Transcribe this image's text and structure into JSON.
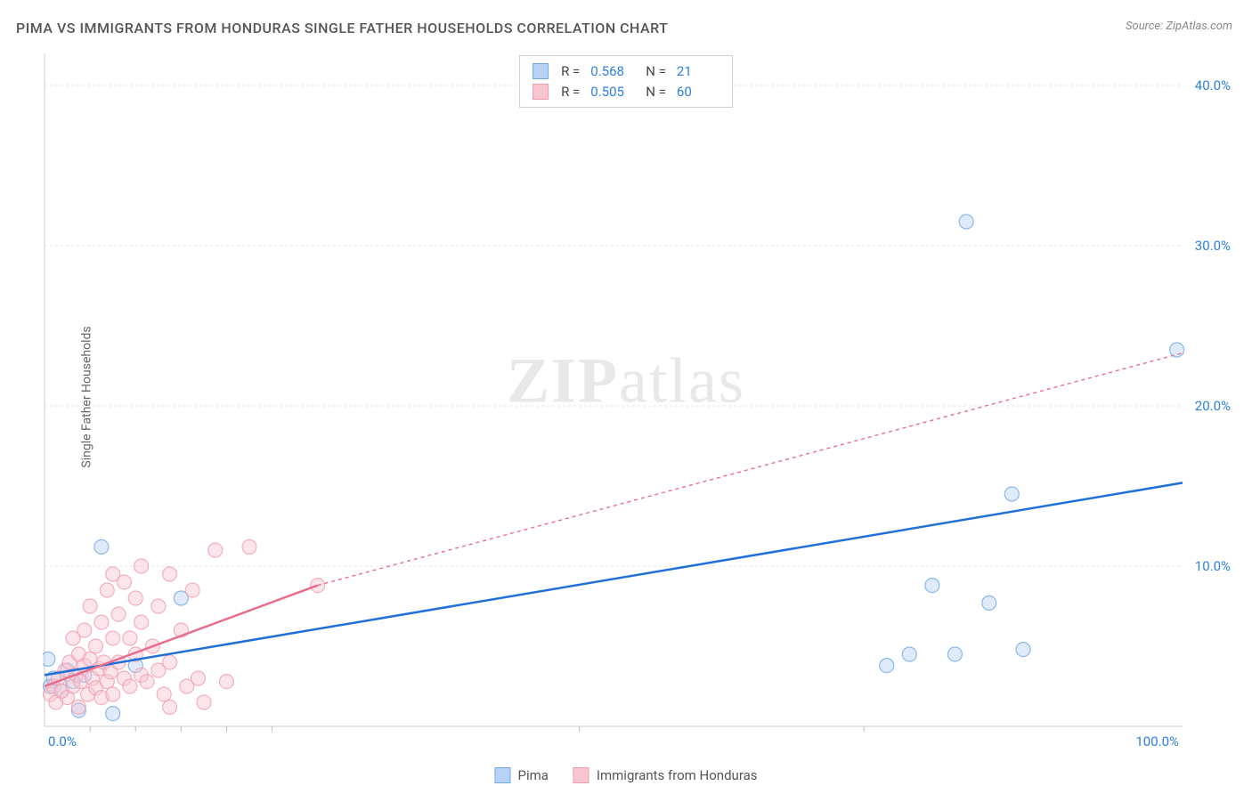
{
  "title": "PIMA VS IMMIGRANTS FROM HONDURAS SINGLE FATHER HOUSEHOLDS CORRELATION CHART",
  "source": "Source: ZipAtlas.com",
  "ylabel": "Single Father Households",
  "watermark_bold": "ZIP",
  "watermark_light": "atlas",
  "chart": {
    "type": "scatter",
    "xlim": [
      0,
      100
    ],
    "ylim": [
      0,
      42
    ],
    "x_ticks": [
      0,
      100
    ],
    "x_tick_labels": [
      "0.0%",
      "100.0%"
    ],
    "x_minor_ticks": [
      4,
      8,
      12,
      16,
      20,
      47,
      72
    ],
    "y_ticks": [
      10,
      20,
      30,
      40
    ],
    "y_tick_labels": [
      "10.0%",
      "20.0%",
      "30.0%",
      "40.0%"
    ],
    "background_color": "#ffffff",
    "grid_color": "#e5e5e5",
    "axis_color": "#cccccc",
    "tick_color": "#bbbbbb",
    "axis_label_color": "#2d7fe0",
    "marker_radius": 8,
    "marker_opacity": 0.45,
    "marker_stroke_opacity": 0.8,
    "series": [
      {
        "name": "Pima",
        "color": "#6fa8e8",
        "fill": "#b7d2f4",
        "line_color": "#1f6fd9",
        "line_width": 2.5,
        "line_dash": "none",
        "r_value": "0.568",
        "n_value": "21",
        "regression": {
          "x1": 0,
          "y1": 3.2,
          "x2": 100,
          "y2": 15.2
        },
        "points": [
          {
            "x": 0.3,
            "y": 4.2
          },
          {
            "x": 0.5,
            "y": 2.5
          },
          {
            "x": 0.8,
            "y": 3.0
          },
          {
            "x": 1.5,
            "y": 2.2
          },
          {
            "x": 2.0,
            "y": 3.5
          },
          {
            "x": 2.5,
            "y": 2.8
          },
          {
            "x": 3.0,
            "y": 1.0
          },
          {
            "x": 3.5,
            "y": 3.2
          },
          {
            "x": 5.0,
            "y": 11.2
          },
          {
            "x": 6.0,
            "y": 0.8
          },
          {
            "x": 8.0,
            "y": 3.8
          },
          {
            "x": 12.0,
            "y": 8.0
          },
          {
            "x": 74.0,
            "y": 3.8
          },
          {
            "x": 76.0,
            "y": 4.5
          },
          {
            "x": 78.0,
            "y": 8.8
          },
          {
            "x": 80.0,
            "y": 4.5
          },
          {
            "x": 81.0,
            "y": 31.5
          },
          {
            "x": 83.0,
            "y": 7.7
          },
          {
            "x": 85.0,
            "y": 14.5
          },
          {
            "x": 86.0,
            "y": 4.8
          },
          {
            "x": 99.5,
            "y": 23.5
          }
        ]
      },
      {
        "name": "Immigrants from Honduras",
        "color": "#f09db0",
        "fill": "#f7c6d1",
        "line_color": "#e96c8b",
        "line_width": 2.5,
        "line_dash": "4,4",
        "r_value": "0.505",
        "n_value": "60",
        "regression_solid": {
          "x1": 0,
          "y1": 2.5,
          "x2": 24,
          "y2": 8.8
        },
        "regression_dashed": {
          "x1": 24,
          "y1": 8.8,
          "x2": 100,
          "y2": 23.3
        },
        "points": [
          {
            "x": 0.5,
            "y": 2.0
          },
          {
            "x": 0.8,
            "y": 2.5
          },
          {
            "x": 1.0,
            "y": 1.5
          },
          {
            "x": 1.2,
            "y": 3.0
          },
          {
            "x": 1.5,
            "y": 2.2
          },
          {
            "x": 1.8,
            "y": 3.5
          },
          {
            "x": 2.0,
            "y": 1.8
          },
          {
            "x": 2.2,
            "y": 4.0
          },
          {
            "x": 2.5,
            "y": 2.5
          },
          {
            "x": 2.5,
            "y": 5.5
          },
          {
            "x": 2.8,
            "y": 3.2
          },
          {
            "x": 3.0,
            "y": 1.2
          },
          {
            "x": 3.0,
            "y": 4.5
          },
          {
            "x": 3.2,
            "y": 2.8
          },
          {
            "x": 3.5,
            "y": 3.8
          },
          {
            "x": 3.5,
            "y": 6.0
          },
          {
            "x": 3.8,
            "y": 2.0
          },
          {
            "x": 4.0,
            "y": 4.2
          },
          {
            "x": 4.0,
            "y": 7.5
          },
          {
            "x": 4.2,
            "y": 3.0
          },
          {
            "x": 4.5,
            "y": 5.0
          },
          {
            "x": 4.5,
            "y": 2.4
          },
          {
            "x": 4.8,
            "y": 3.6
          },
          {
            "x": 5.0,
            "y": 6.5
          },
          {
            "x": 5.0,
            "y": 1.8
          },
          {
            "x": 5.2,
            "y": 4.0
          },
          {
            "x": 5.5,
            "y": 2.8
          },
          {
            "x": 5.5,
            "y": 8.5
          },
          {
            "x": 5.8,
            "y": 3.4
          },
          {
            "x": 6.0,
            "y": 5.5
          },
          {
            "x": 6.0,
            "y": 2.0
          },
          {
            "x": 6.0,
            "y": 9.5
          },
          {
            "x": 6.5,
            "y": 4.0
          },
          {
            "x": 6.5,
            "y": 7.0
          },
          {
            "x": 7.0,
            "y": 3.0
          },
          {
            "x": 7.0,
            "y": 9.0
          },
          {
            "x": 7.5,
            "y": 5.5
          },
          {
            "x": 7.5,
            "y": 2.5
          },
          {
            "x": 8.0,
            "y": 4.5
          },
          {
            "x": 8.0,
            "y": 8.0
          },
          {
            "x": 8.5,
            "y": 3.2
          },
          {
            "x": 8.5,
            "y": 6.5
          },
          {
            "x": 8.5,
            "y": 10.0
          },
          {
            "x": 9.0,
            "y": 2.8
          },
          {
            "x": 9.5,
            "y": 5.0
          },
          {
            "x": 10.0,
            "y": 7.5
          },
          {
            "x": 10.0,
            "y": 3.5
          },
          {
            "x": 10.5,
            "y": 2.0
          },
          {
            "x": 11.0,
            "y": 9.5
          },
          {
            "x": 11.0,
            "y": 4.0
          },
          {
            "x": 11.0,
            "y": 1.2
          },
          {
            "x": 12.0,
            "y": 6.0
          },
          {
            "x": 12.5,
            "y": 2.5
          },
          {
            "x": 13.0,
            "y": 8.5
          },
          {
            "x": 13.5,
            "y": 3.0
          },
          {
            "x": 14.0,
            "y": 1.5
          },
          {
            "x": 15.0,
            "y": 11.0
          },
          {
            "x": 16.0,
            "y": 2.8
          },
          {
            "x": 18.0,
            "y": 11.2
          },
          {
            "x": 24.0,
            "y": 8.8
          }
        ]
      }
    ]
  },
  "legend_bottom": [
    {
      "label": "Pima",
      "fill": "#b7d2f4",
      "stroke": "#6fa8e8"
    },
    {
      "label": "Immigrants from Honduras",
      "fill": "#f7c6d1",
      "stroke": "#f09db0"
    }
  ]
}
